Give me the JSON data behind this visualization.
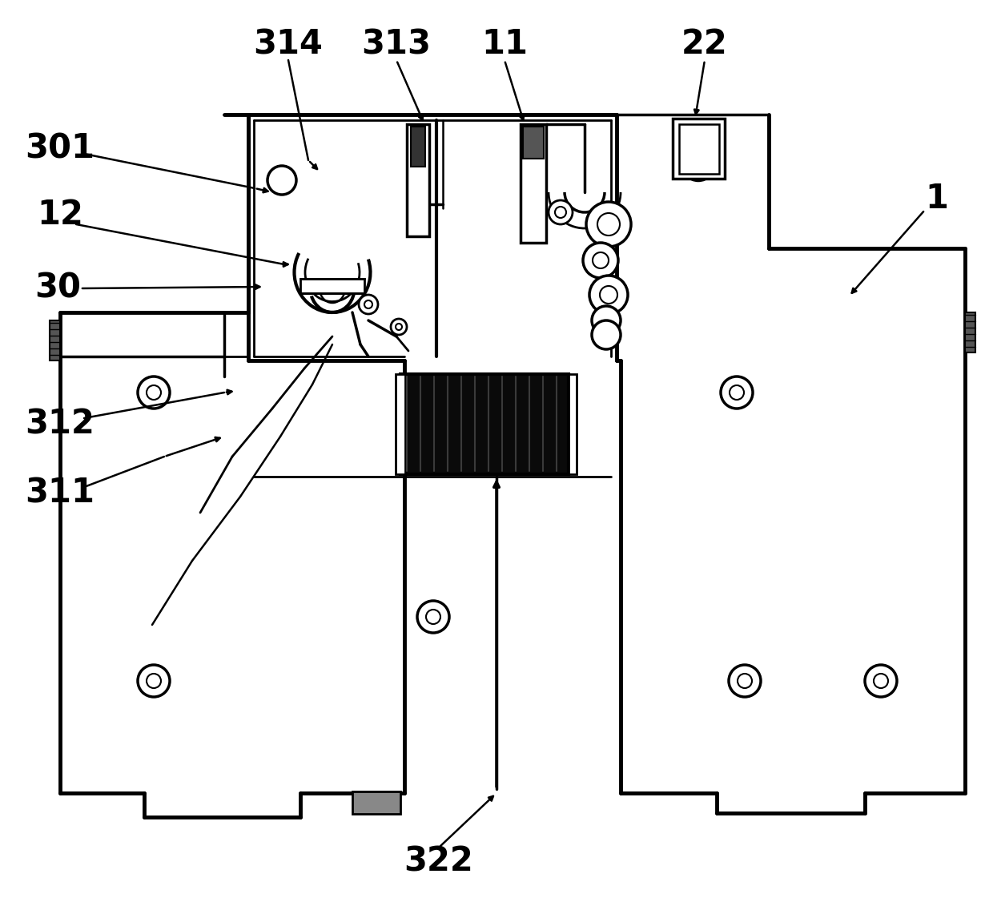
{
  "bg_color": "#ffffff",
  "line_color": "#000000",
  "figsize": [
    12.4,
    11.31
  ],
  "dpi": 100,
  "label_fontsize": 30
}
